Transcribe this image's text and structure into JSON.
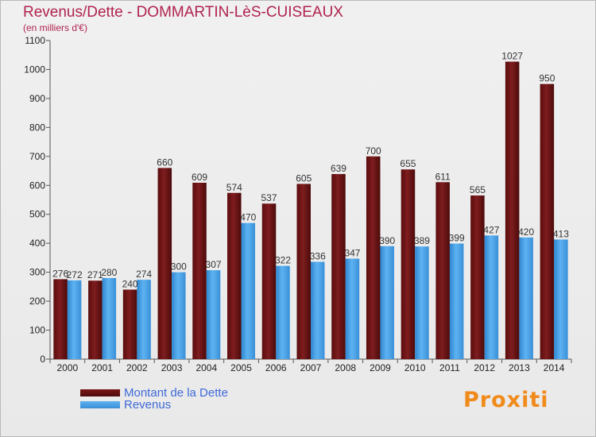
{
  "chart_data": {
    "type": "bar",
    "title": "Revenus/Dette - DOMMARTIN-LèS-CUISEAUX",
    "subtitle": "(en milliers d'€)",
    "xlabel": "",
    "ylabel": "",
    "ylim": [
      0,
      1100
    ],
    "yticks": [
      0,
      100,
      200,
      300,
      400,
      500,
      600,
      700,
      800,
      900,
      1000,
      1100
    ],
    "grid": false,
    "legend_position": "bottom-left",
    "categories": [
      "2000",
      "2001",
      "2002",
      "2003",
      "2004",
      "2005",
      "2006",
      "2007",
      "2008",
      "2009",
      "2010",
      "2011",
      "2012",
      "2013",
      "2014"
    ],
    "series": [
      {
        "name": "Montant de la Dette",
        "color": "#7b1a1c",
        "values": [
          276,
          271,
          240,
          660,
          609,
          574,
          537,
          605,
          639,
          700,
          655,
          611,
          565,
          1027,
          950
        ]
      },
      {
        "name": "Revenus",
        "color": "#4aa3e8",
        "values": [
          272,
          280,
          274,
          300,
          307,
          470,
          322,
          336,
          347,
          390,
          389,
          399,
          427,
          420,
          413
        ]
      }
    ]
  },
  "branding": {
    "logo_text": "Proxiti",
    "logo_color": "#f08a1a"
  }
}
